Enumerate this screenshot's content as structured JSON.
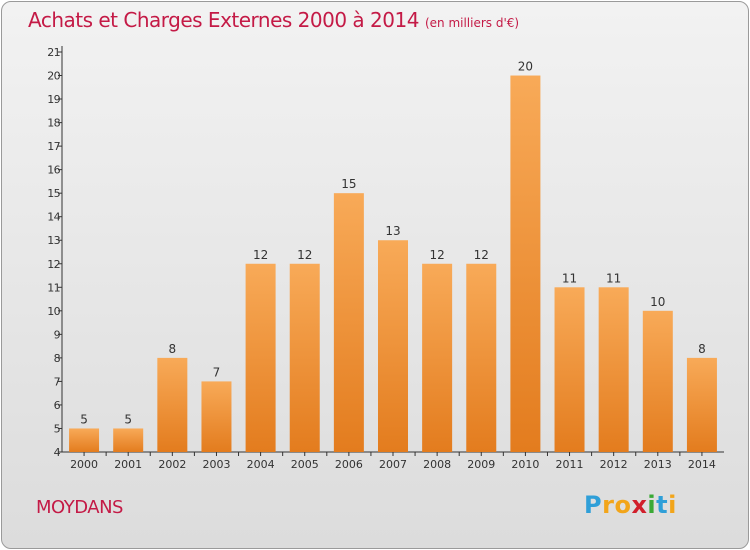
{
  "title": "Achats et Charges Externes 2000 à 2014",
  "subtitle": "(en milliers d'€)",
  "commune": "MOYDANS",
  "logo": {
    "letters": [
      "P",
      "r",
      "o",
      "x",
      "i",
      "t",
      "i"
    ],
    "colors": [
      "#2f9fd8",
      "#f2a51a",
      "#f2a51a",
      "#d11f2b",
      "#3aa935",
      "#2f9fd8",
      "#f2a51a"
    ]
  },
  "colors": {
    "bar_top": "#f8aa58",
    "bar_bottom": "#e37c1e",
    "title": "#c41a46"
  },
  "chart_data": {
    "type": "bar",
    "title": "Achats et Charges Externes 2000 à 2014",
    "subtitle": "(en milliers d'€)",
    "categories": [
      "2000",
      "2001",
      "2002",
      "2003",
      "2004",
      "2005",
      "2006",
      "2007",
      "2008",
      "2009",
      "2010",
      "2011",
      "2012",
      "2013",
      "2014"
    ],
    "values": [
      5,
      5,
      8,
      7,
      12,
      12,
      15,
      13,
      12,
      12,
      20,
      11,
      11,
      10,
      8
    ],
    "ylim": [
      4,
      21
    ],
    "yticks": [
      4,
      5,
      6,
      7,
      8,
      9,
      10,
      11,
      12,
      13,
      14,
      15,
      16,
      17,
      18,
      19,
      20,
      21
    ],
    "grid": false,
    "data_labels": true
  }
}
